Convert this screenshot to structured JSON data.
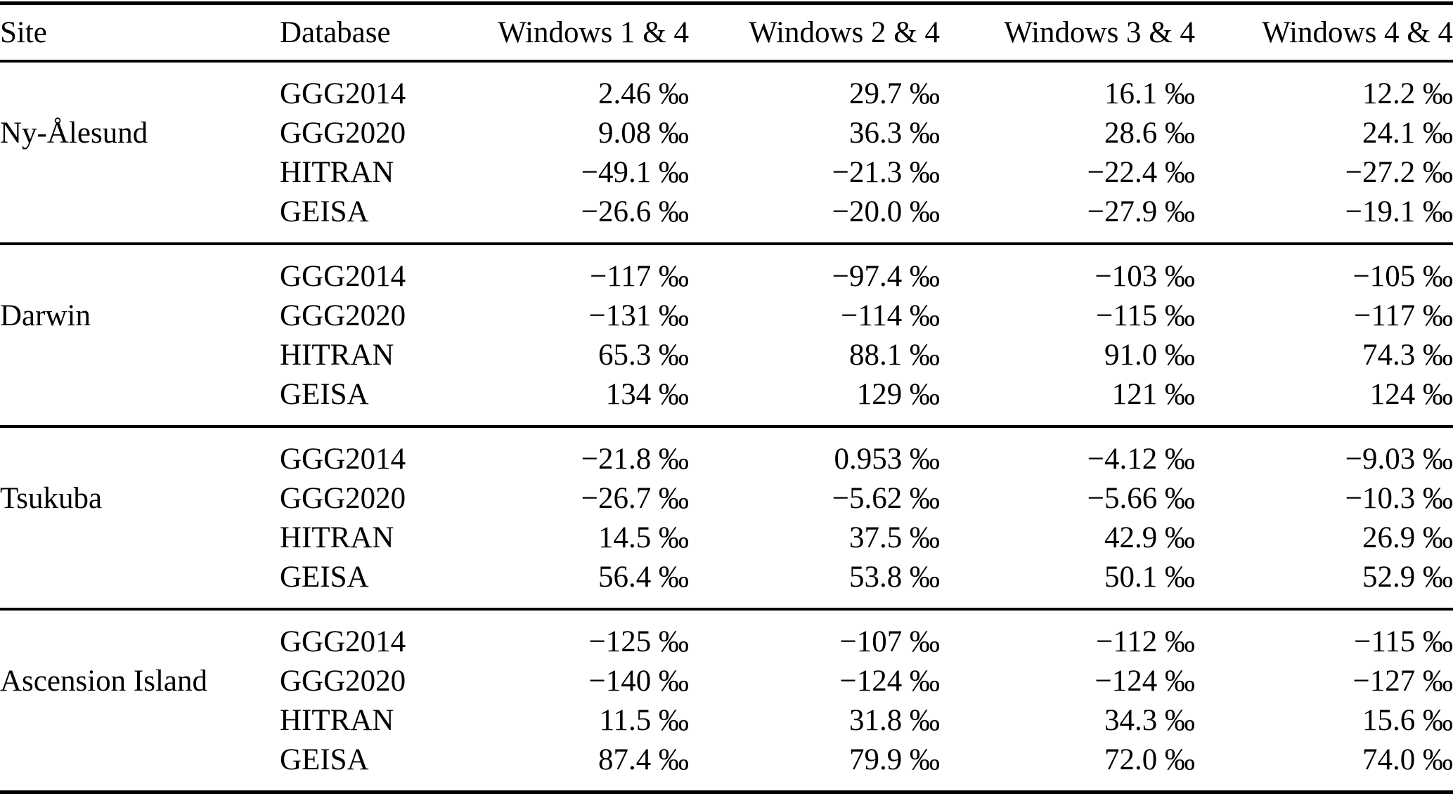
{
  "table": {
    "columns": [
      "Site",
      "Database",
      "Windows 1 & 4",
      "Windows 2 & 4",
      "Windows 3 & 4",
      "Windows 4 & 4"
    ],
    "unit": "‰",
    "text_color": "#000000",
    "background_color": "#ffffff",
    "sections": [
      {
        "site": "Ny-Ålesund",
        "rows": [
          {
            "database": "GGG2014",
            "values": [
              "2.46 ‰",
              "29.7 ‰",
              "16.1 ‰",
              "12.2 ‰"
            ]
          },
          {
            "database": "GGG2020",
            "values": [
              "9.08 ‰",
              "36.3 ‰",
              "28.6 ‰",
              "24.1 ‰"
            ]
          },
          {
            "database": "HITRAN",
            "values": [
              "−49.1 ‰",
              "−21.3 ‰",
              "−22.4 ‰",
              "−27.2 ‰"
            ]
          },
          {
            "database": "GEISA",
            "values": [
              "−26.6 ‰",
              "−20.0 ‰",
              "−27.9 ‰",
              "−19.1 ‰"
            ]
          }
        ]
      },
      {
        "site": "Darwin",
        "rows": [
          {
            "database": "GGG2014",
            "values": [
              "−117 ‰",
              "−97.4 ‰",
              "−103 ‰",
              "−105 ‰"
            ]
          },
          {
            "database": "GGG2020",
            "values": [
              "−131 ‰",
              "−114 ‰",
              "−115 ‰",
              "−117 ‰"
            ]
          },
          {
            "database": "HITRAN",
            "values": [
              "65.3 ‰",
              "88.1 ‰",
              "91.0 ‰",
              "74.3 ‰"
            ]
          },
          {
            "database": "GEISA",
            "values": [
              "134 ‰",
              "129 ‰",
              "121 ‰",
              "124 ‰"
            ]
          }
        ]
      },
      {
        "site": "Tsukuba",
        "rows": [
          {
            "database": "GGG2014",
            "values": [
              "−21.8 ‰",
              "0.953 ‰",
              "−4.12 ‰",
              "−9.03 ‰"
            ]
          },
          {
            "database": "GGG2020",
            "values": [
              "−26.7 ‰",
              "−5.62 ‰",
              "−5.66 ‰",
              "−10.3 ‰"
            ]
          },
          {
            "database": "HITRAN",
            "values": [
              "14.5 ‰",
              "37.5 ‰",
              "42.9 ‰",
              "26.9 ‰"
            ]
          },
          {
            "database": "GEISA",
            "values": [
              "56.4 ‰",
              "53.8 ‰",
              "50.1 ‰",
              "52.9 ‰"
            ]
          }
        ]
      },
      {
        "site": "Ascension Island",
        "rows": [
          {
            "database": "GGG2014",
            "values": [
              "−125 ‰",
              "−107 ‰",
              "−112 ‰",
              "−115 ‰"
            ]
          },
          {
            "database": "GGG2020",
            "values": [
              "−140 ‰",
              "−124 ‰",
              "−124 ‰",
              "−127 ‰"
            ]
          },
          {
            "database": "HITRAN",
            "values": [
              "11.5 ‰",
              "31.8 ‰",
              "34.3 ‰",
              "15.6 ‰"
            ]
          },
          {
            "database": "GEISA",
            "values": [
              "87.4 ‰",
              "79.9 ‰",
              "72.0 ‰",
              "74.0 ‰"
            ]
          }
        ]
      }
    ]
  }
}
